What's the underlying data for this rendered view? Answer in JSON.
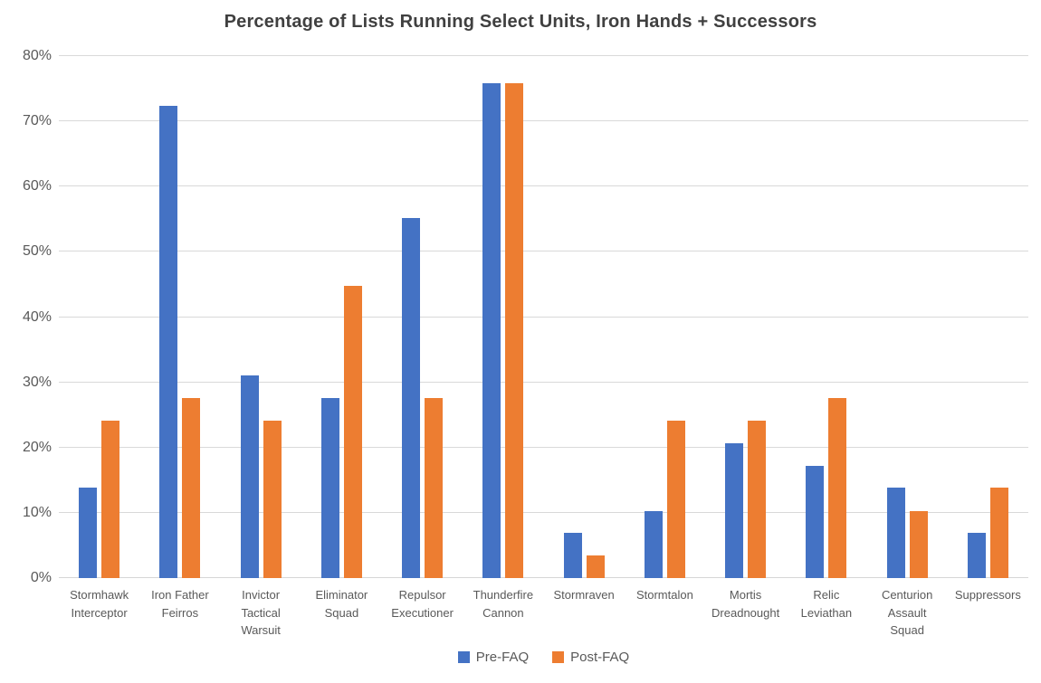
{
  "chart_data": {
    "type": "bar",
    "title": "Percentage of Lists Running Select Units, Iron Hands + Successors",
    "categories": [
      "Stormhawk Interceptor",
      "Iron Father Feirros",
      "Invictor Tactical Warsuit",
      "Eliminator Squad",
      "Repulsor Executioner",
      "Thunderfire Cannon",
      "Stormraven",
      "Stormtalon",
      "Mortis Dreadnought",
      "Relic Leviathan",
      "Centurion Assault Squad",
      "Suppressors"
    ],
    "series": [
      {
        "name": "Pre-FAQ",
        "color": "#4472C4",
        "values": [
          13.8,
          72.4,
          31.0,
          27.6,
          55.2,
          75.9,
          6.9,
          10.3,
          20.7,
          17.2,
          13.8,
          6.9
        ]
      },
      {
        "name": "Post-FAQ",
        "color": "#ED7D31",
        "values": [
          24.1,
          27.6,
          24.1,
          44.8,
          27.6,
          75.9,
          3.4,
          24.1,
          24.1,
          27.6,
          10.3,
          13.8
        ]
      }
    ],
    "xlabel": "",
    "ylabel": "",
    "ylim": [
      0,
      80
    ],
    "ytick_step": 10,
    "ytick_labels": [
      "0%",
      "10%",
      "20%",
      "30%",
      "40%",
      "50%",
      "60%",
      "70%",
      "80%"
    ],
    "grid": true,
    "legend_position": "bottom"
  },
  "style": {
    "title_color": "#404040",
    "axis_label_color": "#595959",
    "gridline_color": "#D9D9D9",
    "axis_line_color": "#D6D6D6",
    "background": "#FFFFFF"
  }
}
